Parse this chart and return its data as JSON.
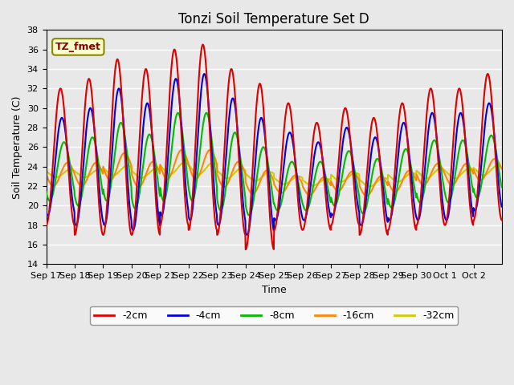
{
  "title": "Tonzi Soil Temperature Set D",
  "xlabel": "Time",
  "ylabel": "Soil Temperature (C)",
  "ylim": [
    14,
    38
  ],
  "yticks": [
    14,
    16,
    18,
    20,
    22,
    24,
    26,
    28,
    30,
    32,
    34,
    36,
    38
  ],
  "series": [
    "-2cm",
    "-4cm",
    "-8cm",
    "-16cm",
    "-32cm"
  ],
  "colors": [
    "#dd0000",
    "#0000dd",
    "#00bb00",
    "#ff8800",
    "#cccc00"
  ],
  "linewidth": 1.5,
  "background_color": "#e8e8e8",
  "plot_bg_color": "#e8e8e8",
  "legend_label": "TZ_fmet",
  "legend_bg": "#ffffcc",
  "legend_border": "#888800",
  "n_days": 16,
  "x_tick_labels": [
    "Sep 17",
    "Sep 18",
    "Sep 19",
    "Sep 20",
    "Sep 21",
    "Sep 22",
    "Sep 23",
    "Sep 24",
    "Sep 25",
    "Sep 26",
    "Sep 27",
    "Sep 28",
    "Sep 29",
    "Sep 30",
    "Oct 1",
    "Oct 2"
  ],
  "amplitude_2cm": [
    7.0,
    8.0,
    9.0,
    8.5,
    9.0,
    9.5,
    8.5,
    8.5,
    6.5,
    5.5,
    6.0,
    6.0,
    6.5,
    7.0,
    7.0,
    7.5
  ],
  "mean_2cm": [
    25.0,
    25.0,
    26.0,
    25.5,
    27.0,
    27.0,
    25.5,
    24.0,
    24.0,
    23.0,
    24.0,
    23.0,
    24.0,
    25.0,
    25.0,
    26.0
  ],
  "amplitude_4cm": [
    5.0,
    6.0,
    7.0,
    6.5,
    7.0,
    7.5,
    6.5,
    6.0,
    4.5,
    4.0,
    4.5,
    4.5,
    5.0,
    5.5,
    5.5,
    5.5
  ],
  "mean_4cm": [
    24.0,
    24.0,
    25.0,
    24.0,
    26.0,
    26.0,
    24.5,
    23.0,
    23.0,
    22.5,
    23.5,
    22.5,
    23.5,
    24.0,
    24.0,
    25.0
  ],
  "amplitude_8cm": [
    3.0,
    3.5,
    4.0,
    3.8,
    4.5,
    4.5,
    4.0,
    3.5,
    2.5,
    2.5,
    2.8,
    2.8,
    3.0,
    3.2,
    3.2,
    3.2
  ],
  "mean_8cm": [
    23.5,
    23.5,
    24.5,
    23.5,
    25.0,
    25.0,
    23.5,
    22.5,
    22.0,
    22.0,
    22.8,
    22.0,
    22.8,
    23.5,
    23.5,
    24.0
  ],
  "amplitude_16cm": [
    1.2,
    1.2,
    1.4,
    1.3,
    1.5,
    1.5,
    1.3,
    1.2,
    0.9,
    0.9,
    1.0,
    1.0,
    1.1,
    1.1,
    1.1,
    1.1
  ],
  "mean_16cm": [
    23.2,
    23.2,
    24.0,
    23.2,
    24.2,
    24.2,
    23.2,
    22.4,
    22.2,
    22.0,
    22.5,
    22.0,
    22.5,
    23.2,
    23.2,
    23.7
  ],
  "amplitude_32cm": [
    0.4,
    0.4,
    0.5,
    0.45,
    0.6,
    0.6,
    0.5,
    0.45,
    0.4,
    0.35,
    0.45,
    0.45,
    0.45,
    0.5,
    0.5,
    0.5
  ],
  "mean_32cm": [
    23.3,
    23.3,
    23.6,
    23.3,
    23.8,
    23.8,
    23.3,
    23.0,
    22.6,
    22.4,
    22.9,
    22.4,
    22.9,
    23.3,
    23.3,
    23.6
  ]
}
